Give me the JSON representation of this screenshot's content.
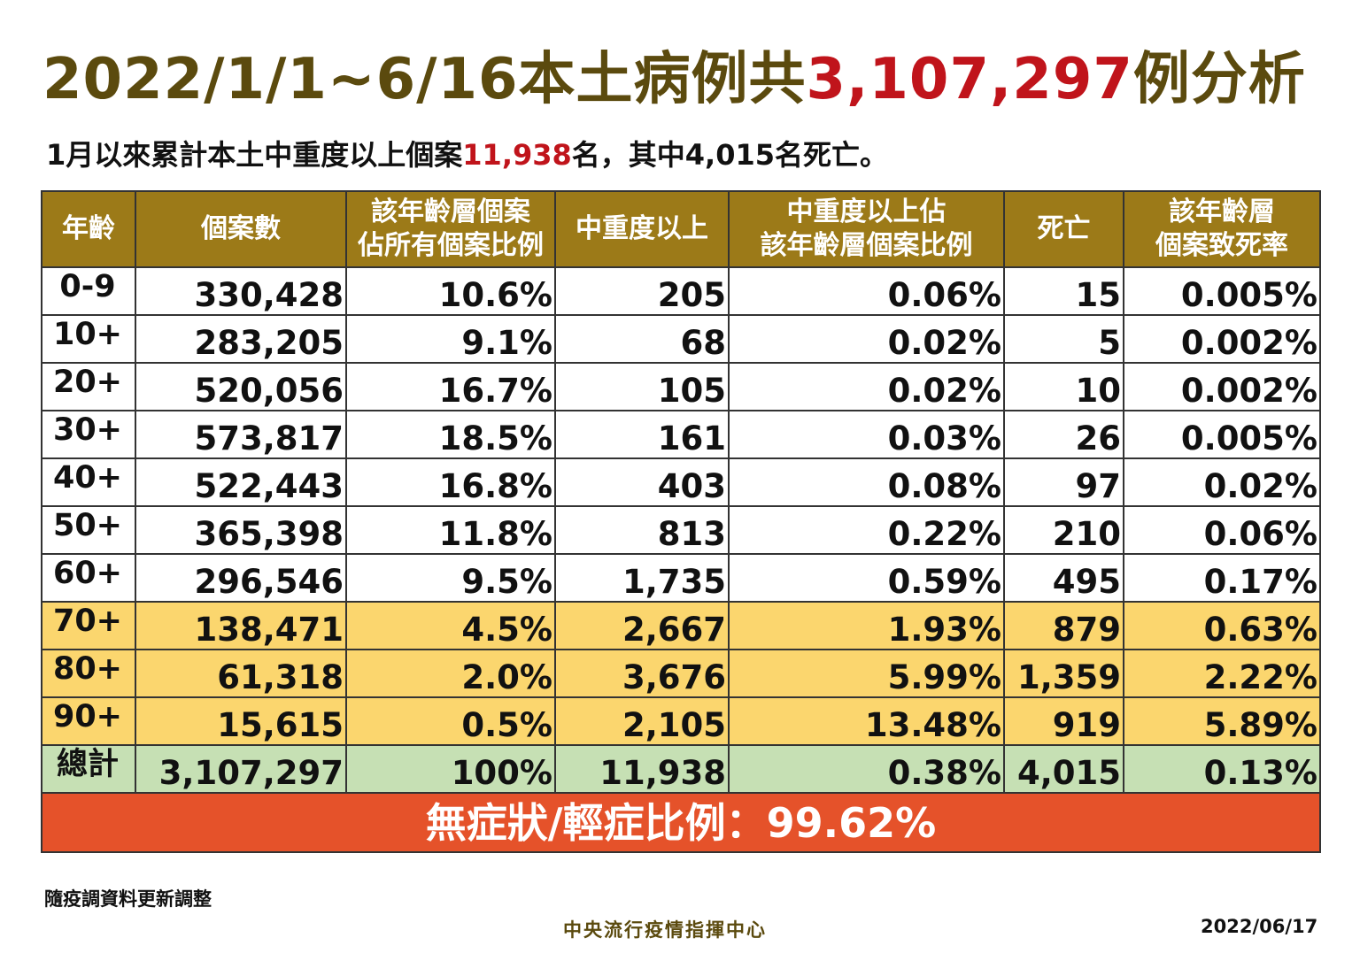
{
  "header": {
    "title": [
      "2022/1/1~6/16本土病例共",
      "3,107,297",
      "例分析"
    ],
    "subtitle": [
      "1月以來累計本土中重度以上個案",
      "11,938",
      "名，其中4,015名死亡。"
    ]
  },
  "table": {
    "columns": [
      [
        "年齡"
      ],
      [
        "個案數"
      ],
      [
        "該年齡層個案",
        "佔所有個案比例"
      ],
      [
        "中重度以上"
      ],
      [
        "中重度以上佔",
        "該年齡層個案比例"
      ],
      [
        "死亡"
      ],
      [
        "該年齡層",
        "個案致死率"
      ]
    ],
    "rows": [
      [
        "0-9",
        "330,428",
        "10.6%",
        "205",
        "0.06%",
        "15",
        "0.005%"
      ],
      [
        "10+",
        "283,205",
        "9.1%",
        "68",
        "0.02%",
        "5",
        "0.002%"
      ],
      [
        "20+",
        "520,056",
        "16.7%",
        "105",
        "0.02%",
        "10",
        "0.002%"
      ],
      [
        "30+",
        "573,817",
        "18.5%",
        "161",
        "0.03%",
        "26",
        "0.005%"
      ],
      [
        "40+",
        "522,443",
        "16.8%",
        "403",
        "0.08%",
        "97",
        "0.02%"
      ],
      [
        "50+",
        "365,398",
        "11.8%",
        "813",
        "0.22%",
        "210",
        "0.06%"
      ],
      [
        "60+",
        "296,546",
        "9.5%",
        "1,735",
        "0.59%",
        "495",
        "0.17%"
      ],
      [
        "70+",
        "138,471",
        "4.5%",
        "2,667",
        "1.93%",
        "879",
        "0.63%"
      ],
      [
        "80+",
        "61,318",
        "2.0%",
        "3,676",
        "5.99%",
        "1,359",
        "2.22%"
      ],
      [
        "90+",
        "15,615",
        "0.5%",
        "2,105",
        "13.48%",
        "919",
        "5.89%"
      ],
      [
        "總計",
        "3,107,297",
        "100%",
        "11,938",
        "0.38%",
        "4,015",
        "0.13%"
      ]
    ],
    "summary": "無症狀/輕症比例：99.62%"
  },
  "footer": {
    "note": "隨疫調資料更新調整",
    "agency": "中央流行疫情指揮中心",
    "date": "2022/06/17"
  }
}
